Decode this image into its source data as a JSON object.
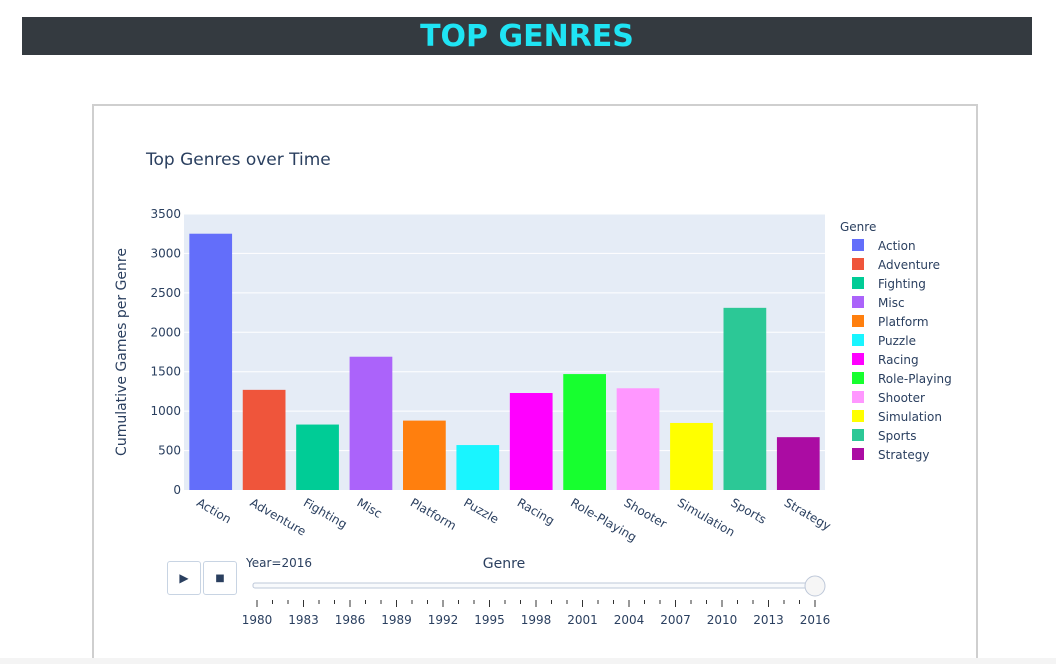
{
  "header": {
    "title": "TOP GENRES"
  },
  "chart_data": {
    "type": "bar",
    "title": "Top Genres over Time",
    "xlabel": "",
    "ylabel": "Cumulative Games per Genre",
    "ylim": [
      0,
      3500
    ],
    "yticks": [
      0,
      500,
      1000,
      1500,
      2000,
      2500,
      3000,
      3500
    ],
    "categories": [
      "Action",
      "Adventure",
      "Fighting",
      "Misc",
      "Platform",
      "Puzzle",
      "Racing",
      "Role-Playing",
      "Shooter",
      "Simulation",
      "Sports",
      "Strategy"
    ],
    "values": [
      3250,
      1270,
      830,
      1690,
      880,
      570,
      1230,
      1470,
      1290,
      850,
      2310,
      670
    ],
    "colors": [
      "#636efa",
      "#ef553b",
      "#00cc96",
      "#ab63fa",
      "#ff7f0e",
      "#19f5ff",
      "#ff00ff",
      "#17ff2f",
      "#ff97ff",
      "#ffff00",
      "#2cc896",
      "#ab0ca3"
    ],
    "legend": {
      "title": "Genre",
      "position": "right"
    },
    "grid": true
  },
  "slider": {
    "current_label": "Year=2016",
    "axis_label": "Genre",
    "value": 2016,
    "min": 1980,
    "max": 2016,
    "tick_labels": [
      "1980",
      "1983",
      "1986",
      "1989",
      "1992",
      "1995",
      "1998",
      "2001",
      "2004",
      "2007",
      "2010",
      "2013",
      "2016"
    ]
  },
  "controls": {
    "play_icon": "▶",
    "stop_icon": "■"
  }
}
